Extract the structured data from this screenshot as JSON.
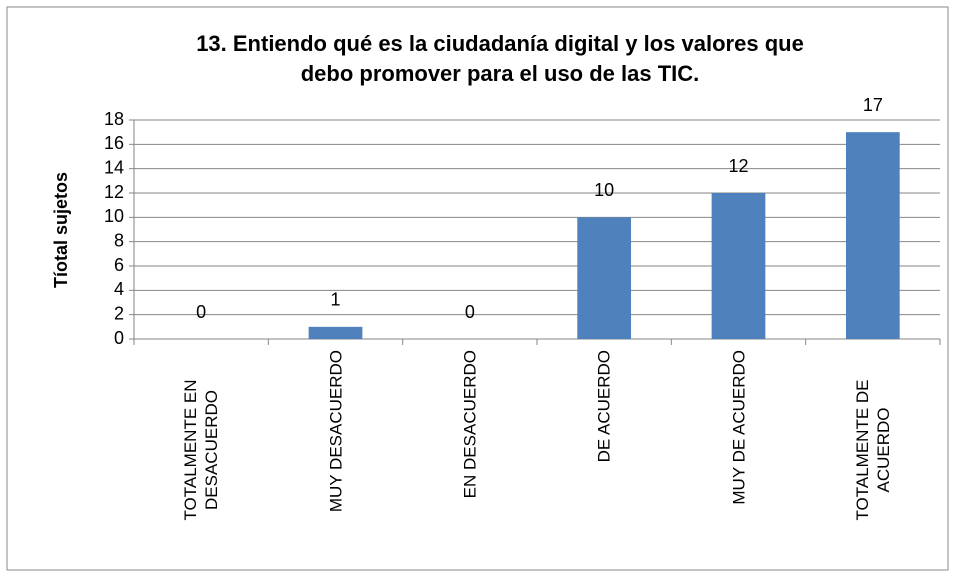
{
  "chart_data": {
    "type": "bar",
    "title": [
      "13. Entiendo qué es la ciudadanía digital y los valores que",
      "debo promover para el uso de las TIC."
    ],
    "y_label": "Tíotal sujetos",
    "categories": [
      "TOTALMENTE EN DESACUERDO",
      "MUY DESACUERDO",
      "EN DESACUERDO",
      "DE ACUERDO",
      "MUY DE ACUERDO",
      "TOTALMENTE DE ACUERDO"
    ],
    "values": [
      0,
      1,
      0,
      10,
      12,
      17
    ],
    "color": "#4f81bd",
    "ylim": [
      0,
      18
    ],
    "yticks": [
      0,
      2,
      4,
      6,
      8,
      10,
      12,
      14,
      16,
      18
    ],
    "grid": true
  }
}
